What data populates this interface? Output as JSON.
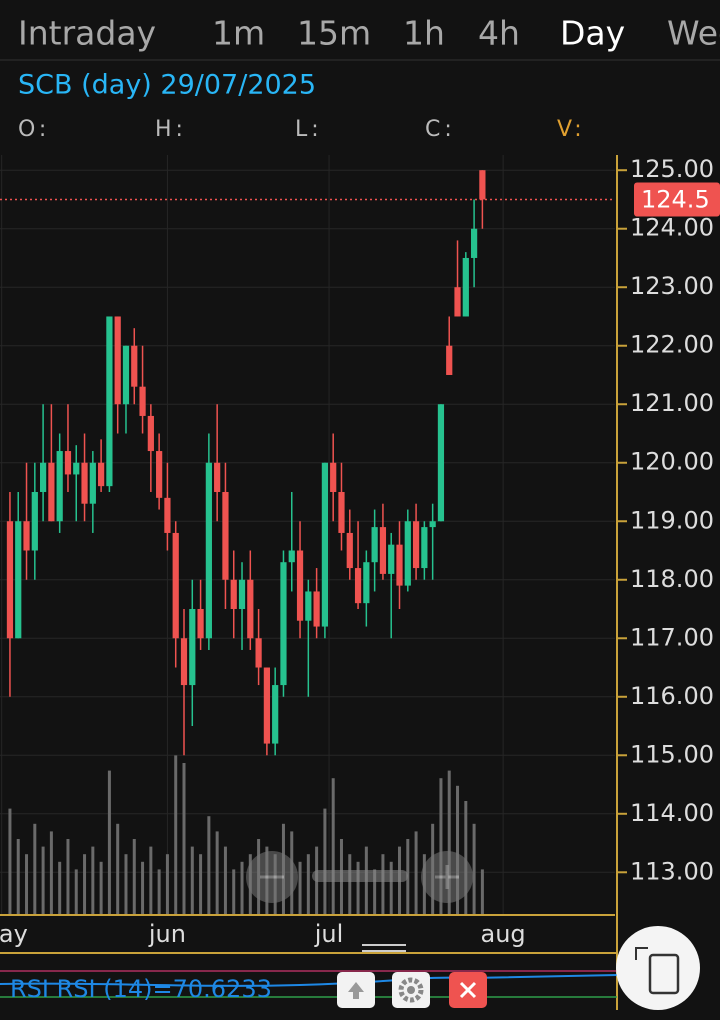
{
  "tabs": [
    {
      "label": "Intraday",
      "active": false
    },
    {
      "label": "1m",
      "active": false
    },
    {
      "label": "15m",
      "active": false
    },
    {
      "label": "1h",
      "active": false
    },
    {
      "label": "4h",
      "active": false
    },
    {
      "label": "Day",
      "active": true
    },
    {
      "label": "Week",
      "active": false
    }
  ],
  "header": {
    "title": "SCB (day) 29/07/2025",
    "fields": [
      "O:",
      "H:",
      "L:",
      "C:",
      "V:"
    ]
  },
  "chart_data": {
    "type": "candlestick",
    "up_color": "#26c28f",
    "down_color": "#ef5350",
    "volume_color": "#6a6a6a",
    "xlim": [
      -1.2,
      73
    ],
    "xticks": [
      {
        "value": -1,
        "label": "may"
      },
      {
        "value": 19,
        "label": "jun"
      },
      {
        "value": 38.5,
        "label": "jul"
      },
      {
        "value": 59.5,
        "label": "aug"
      }
    ],
    "ylim": [
      112.27,
      125.26
    ],
    "yticks": [
      {
        "value": 113,
        "label": "113.00"
      },
      {
        "value": 114,
        "label": "114.00"
      },
      {
        "value": 115,
        "label": "115.00"
      },
      {
        "value": 116,
        "label": "116.00"
      },
      {
        "value": 117,
        "label": "117.00"
      },
      {
        "value": 118,
        "label": "118.00"
      },
      {
        "value": 119,
        "label": "119.00"
      },
      {
        "value": 120,
        "label": "120.00"
      },
      {
        "value": 121,
        "label": "121.00"
      },
      {
        "value": 122,
        "label": "122.00"
      },
      {
        "value": 123,
        "label": "123.00"
      },
      {
        "value": 124,
        "label": "124.00"
      },
      {
        "value": 125,
        "label": "125.00"
      }
    ],
    "last_price": 124.5,
    "ohlc": [
      [
        119,
        119.5,
        116,
        117
      ],
      [
        117,
        119.5,
        117,
        119
      ],
      [
        119,
        120,
        118,
        118.5
      ],
      [
        118.5,
        120,
        118,
        119.5
      ],
      [
        119.5,
        121,
        119,
        120
      ],
      [
        120,
        121,
        119,
        119
      ],
      [
        119,
        120.5,
        118.8,
        120.2
      ],
      [
        120.2,
        121,
        119.5,
        119.8
      ],
      [
        119.8,
        120.3,
        119,
        120
      ],
      [
        120,
        120.5,
        119,
        119.3
      ],
      [
        119.3,
        120.2,
        118.8,
        120
      ],
      [
        120,
        120.4,
        119.5,
        119.6
      ],
      [
        119.6,
        122.5,
        119.5,
        122.5
      ],
      [
        122.5,
        122.5,
        120.5,
        121
      ],
      [
        121,
        122,
        120.5,
        122
      ],
      [
        122,
        122.3,
        121,
        121.3
      ],
      [
        121.3,
        122,
        120.5,
        120.8
      ],
      [
        120.8,
        121,
        119.5,
        120.2
      ],
      [
        120.2,
        120.5,
        119.2,
        119.4
      ],
      [
        119.4,
        120,
        118.5,
        118.8
      ],
      [
        118.8,
        119,
        116.5,
        117
      ],
      [
        117,
        117.5,
        115,
        116.2
      ],
      [
        116.2,
        118,
        115.5,
        117.5
      ],
      [
        117.5,
        118,
        116.8,
        117
      ],
      [
        117,
        120.5,
        116.8,
        120
      ],
      [
        120,
        121,
        119,
        119.5
      ],
      [
        119.5,
        120,
        117.5,
        118
      ],
      [
        118,
        118.5,
        117,
        117.5
      ],
      [
        117.5,
        118.3,
        116.8,
        118
      ],
      [
        118,
        118.5,
        116.8,
        117
      ],
      [
        117,
        117.5,
        116.2,
        116.5
      ],
      [
        116.5,
        116.5,
        115,
        115.2
      ],
      [
        115.2,
        116.5,
        115,
        116.2
      ],
      [
        116.2,
        118.5,
        116,
        118.3
      ],
      [
        118.3,
        119.5,
        117.8,
        118.5
      ],
      [
        118.5,
        119,
        117,
        117.3
      ],
      [
        117.3,
        118,
        116,
        117.8
      ],
      [
        117.8,
        118.2,
        117,
        117.2
      ],
      [
        117.2,
        120,
        117,
        120
      ],
      [
        120,
        120.5,
        119,
        119.5
      ],
      [
        119.5,
        120,
        118.5,
        118.8
      ],
      [
        118.8,
        119.2,
        118,
        118.2
      ],
      [
        118.2,
        119,
        117.5,
        117.6
      ],
      [
        117.6,
        118.5,
        117.2,
        118.3
      ],
      [
        118.3,
        119.2,
        117.8,
        118.9
      ],
      [
        118.9,
        119.3,
        118,
        118.1
      ],
      [
        118.1,
        118.8,
        117,
        118.6
      ],
      [
        118.6,
        119,
        117.5,
        117.9
      ],
      [
        117.9,
        119.2,
        117.8,
        119
      ],
      [
        119,
        119.3,
        118,
        118.2
      ],
      [
        118.2,
        119,
        118,
        118.9
      ],
      [
        118.9,
        119.3,
        118,
        119
      ],
      [
        119,
        121,
        119,
        121
      ],
      [
        122,
        122.5,
        121.5,
        121.5
      ],
      [
        123,
        123.8,
        122.5,
        122.5
      ],
      [
        122.5,
        123.6,
        122.5,
        123.5
      ],
      [
        123.5,
        124.5,
        123,
        124
      ],
      [
        125,
        125,
        124,
        124.5
      ]
    ],
    "volume_ylim": [
      0,
      100
    ],
    "volumes": [
      14,
      10,
      8,
      12,
      9,
      11,
      7,
      10,
      6,
      8,
      9,
      7,
      19,
      12,
      8,
      10,
      7,
      9,
      6,
      8,
      21,
      20,
      9,
      8,
      13,
      11,
      9,
      6,
      7,
      8,
      10,
      9,
      8,
      12,
      11,
      7,
      8,
      9,
      14,
      18,
      10,
      8,
      7,
      9,
      6,
      8,
      7,
      9,
      10,
      11,
      8,
      12,
      18,
      19,
      17,
      15,
      12,
      6
    ]
  },
  "rsi": {
    "label": "RSI RSI (14)=70.6233"
  }
}
